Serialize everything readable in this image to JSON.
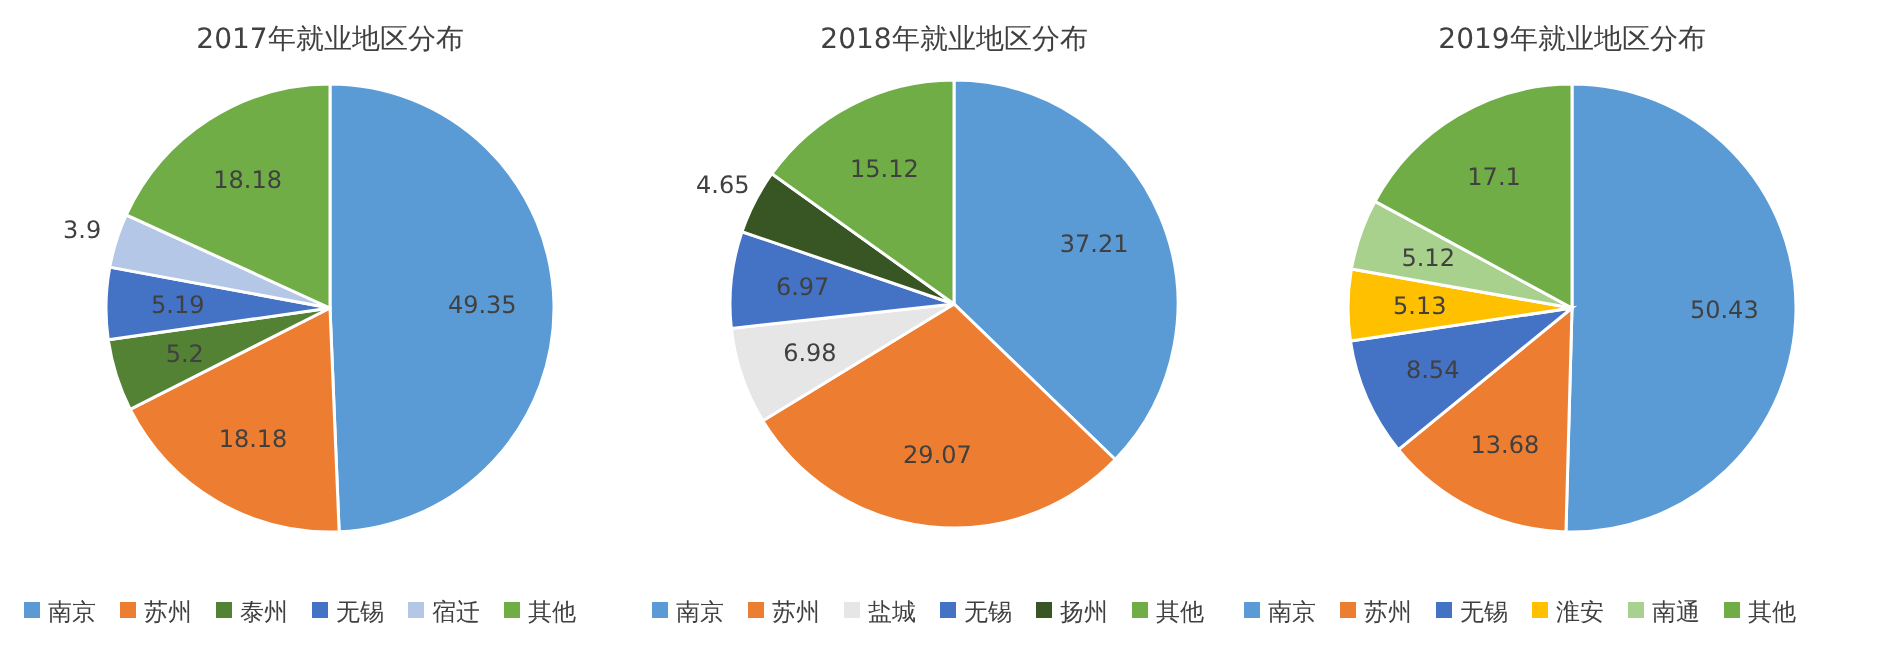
{
  "chart_data": [
    {
      "type": "pie",
      "title": "2017年就业地区分布",
      "categories": [
        "南京",
        "苏州",
        "泰州",
        "无锡",
        "宿迁",
        "其他"
      ],
      "values": [
        49.35,
        18.18,
        5.2,
        5.19,
        3.9,
        18.18
      ],
      "colors": [
        "#5b9bd5",
        "#ed7d31",
        "#548235",
        "#4472c4",
        "#b4c7e7",
        "#70ad47"
      ],
      "data_labels": true,
      "legend": "bottom"
    },
    {
      "type": "pie",
      "title": "2018年就业地区分布",
      "categories": [
        "南京",
        "苏州",
        "盐城",
        "无锡",
        "扬州",
        "其他"
      ],
      "values": [
        37.21,
        29.07,
        6.98,
        6.97,
        4.65,
        15.12
      ],
      "colors": [
        "#5b9bd5",
        "#ed7d31",
        "#e7e6e6",
        "#4472c4",
        "#375623",
        "#70ad47"
      ],
      "data_labels": true,
      "legend": "bottom"
    },
    {
      "type": "pie",
      "title": "2019年就业地区分布",
      "categories": [
        "南京",
        "苏州",
        "无锡",
        "淮安",
        "南通",
        "其他"
      ],
      "values": [
        50.43,
        13.68,
        8.54,
        5.13,
        5.12,
        17.1
      ],
      "colors": [
        "#5b9bd5",
        "#ed7d31",
        "#4472c4",
        "#ffc000",
        "#a9d18e",
        "#70ad47"
      ],
      "data_labels": true,
      "legend": "bottom"
    }
  ]
}
